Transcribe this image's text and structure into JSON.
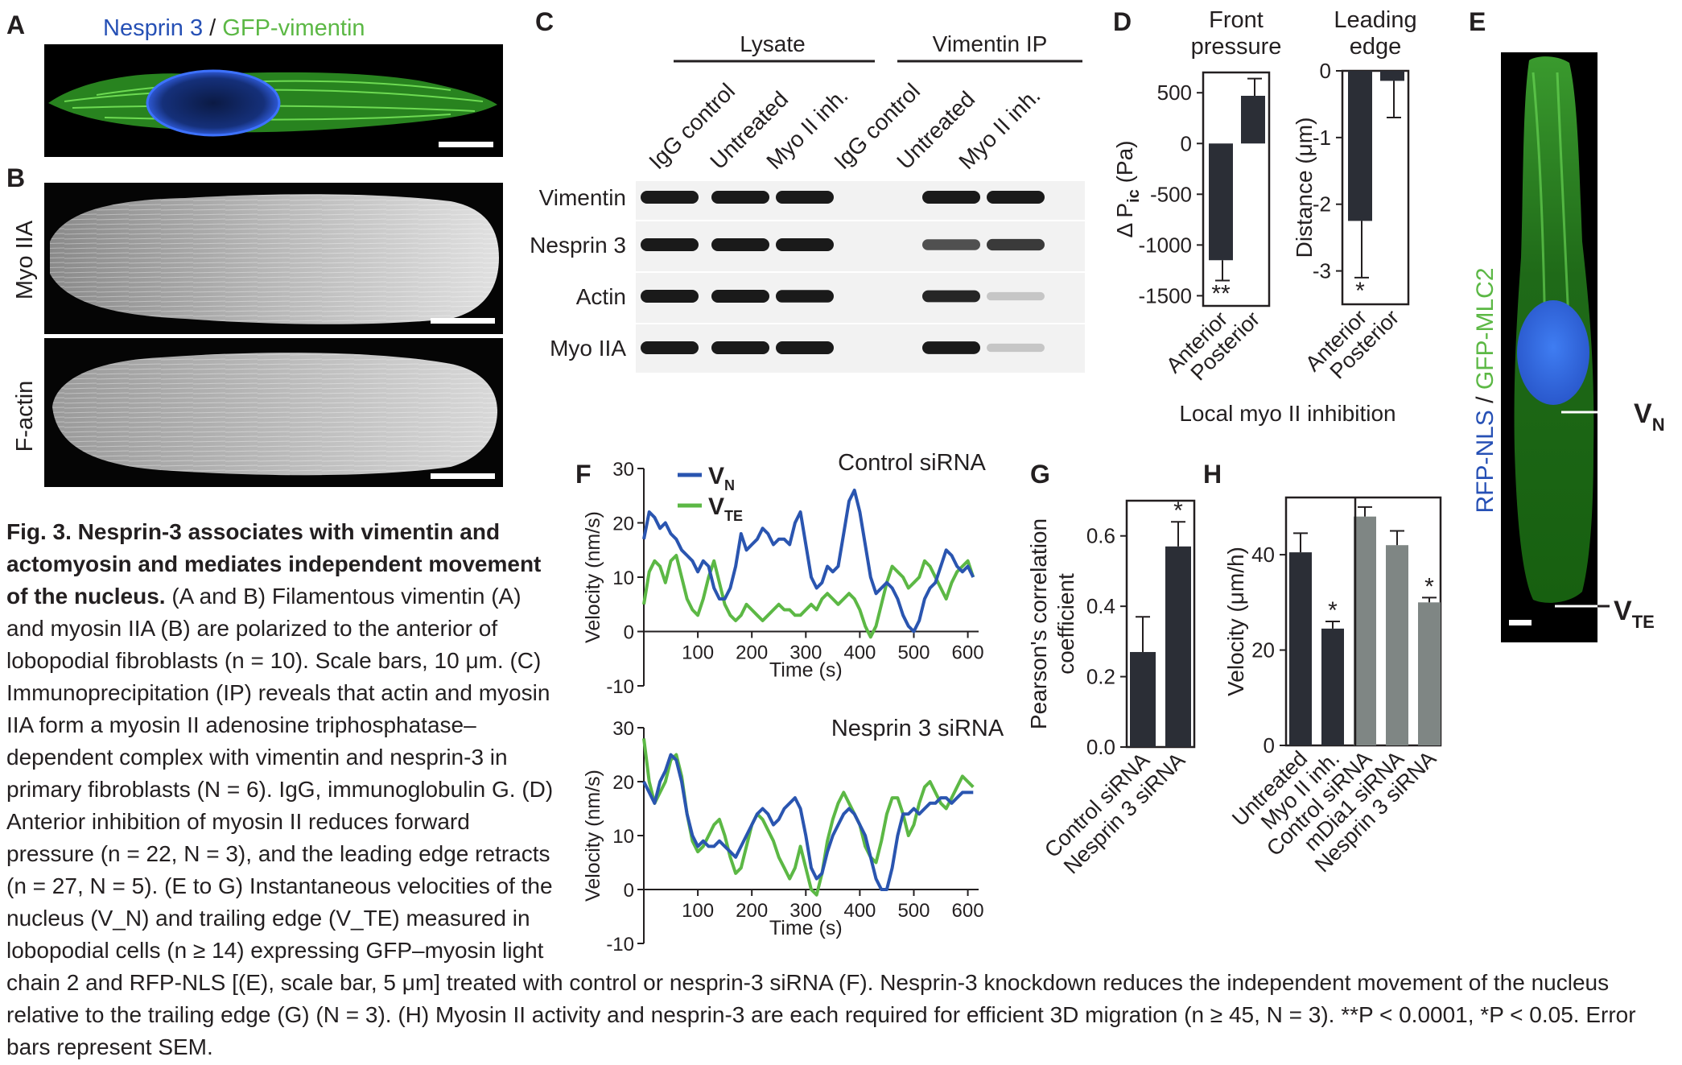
{
  "panels": {
    "A": {
      "letter": "A",
      "label_blue": "Nesprin 3",
      "label_sep": " / ",
      "label_green": "GFP-vimentin"
    },
    "B": {
      "letter": "B",
      "row1": "Myo IIA",
      "row2": "F-actin"
    },
    "C": {
      "letter": "C",
      "group1": "Lysate",
      "group2": "Vimentin IP",
      "lanes": [
        "IgG control",
        "Untreated",
        "Myo II inh.",
        "IgG control",
        "Untreated",
        "Myo II inh."
      ],
      "rows": [
        "Vimentin",
        "Nesprin 3",
        "Actin",
        "Myo IIA"
      ],
      "band_intensity": [
        [
          1.0,
          1.0,
          1.0,
          0.0,
          1.0,
          1.0
        ],
        [
          1.0,
          1.0,
          1.0,
          0.0,
          0.6,
          0.7
        ],
        [
          1.0,
          1.0,
          0.9,
          0.0,
          0.8,
          0.05
        ],
        [
          1.0,
          1.0,
          1.0,
          0.0,
          0.95,
          0.05
        ]
      ]
    },
    "D": {
      "letter": "D",
      "xlabel": "Local myo II inhibition"
    },
    "E": {
      "letter": "E",
      "label_blue": "RFP-NLS",
      "label_sep": " / ",
      "label_green": "GFP-MLC2",
      "vn_main": "V",
      "vn_sub": "N",
      "vte_main": "V",
      "vte_sub": "TE"
    },
    "F": {
      "letter": "F"
    },
    "G": {
      "letter": "G"
    },
    "H": {
      "letter": "H"
    }
  },
  "chart_data": [
    {
      "id": "D-front",
      "type": "bar",
      "title": "Front pressure",
      "title_lines": [
        "Front",
        "pressure"
      ],
      "ylabel": "Δ P_ic (Pa)",
      "ylabel_main": "Δ P",
      "ylabel_sub": "ic",
      "ylabel_unit": " (Pa)",
      "categories": [
        "Anterior",
        "Posterior"
      ],
      "values": [
        -1150,
        470
      ],
      "errors": [
        200,
        170
      ],
      "significance": [
        "**",
        ""
      ],
      "ylim": [
        -1600,
        700
      ],
      "yticks": [
        500,
        0,
        -500,
        -1000,
        -1500
      ],
      "ytick_labels": [
        "500",
        "0",
        "-500",
        "-1000",
        "-1500"
      ],
      "colors": [
        "#2b2e36",
        "#2b2e36"
      ]
    },
    {
      "id": "D-edge",
      "type": "bar",
      "title": "Leading edge",
      "title_lines": [
        "Leading",
        "edge"
      ],
      "ylabel": "Distance (μm)",
      "categories": [
        "Anterior",
        "Posterior"
      ],
      "values": [
        -2.25,
        -0.15
      ],
      "errors": [
        0.85,
        0.55
      ],
      "significance": [
        "*",
        ""
      ],
      "ylim": [
        -3.5,
        0
      ],
      "yticks": [
        0,
        -1,
        -2,
        -3
      ],
      "ytick_labels": [
        "0",
        "-1",
        "-2",
        "-3"
      ],
      "colors": [
        "#2b2e36",
        "#2b2e36"
      ]
    },
    {
      "id": "F-control",
      "type": "line",
      "title": "Control siRNA",
      "xlabel": "Time (s)",
      "ylabel": "Velocity (nm/s)",
      "xlim": [
        0,
        620
      ],
      "ylim": [
        -10,
        30
      ],
      "xticks": [
        100,
        200,
        300,
        400,
        500,
        600
      ],
      "yticks": [
        30,
        20,
        10,
        0,
        -10
      ],
      "legend": [
        {
          "main": "V",
          "sub": "N",
          "color": "#2a55b0"
        },
        {
          "main": "V",
          "sub": "TE",
          "color": "#5cb845"
        }
      ],
      "series": [
        {
          "name": "V_N",
          "color": "#2a55b0",
          "x": [
            0,
            10,
            20,
            30,
            40,
            50,
            60,
            70,
            80,
            90,
            100,
            110,
            120,
            130,
            140,
            150,
            160,
            170,
            180,
            190,
            200,
            210,
            220,
            230,
            240,
            250,
            260,
            270,
            280,
            290,
            300,
            310,
            320,
            330,
            340,
            350,
            360,
            370,
            380,
            390,
            400,
            410,
            420,
            430,
            440,
            450,
            460,
            470,
            480,
            490,
            500,
            510,
            520,
            530,
            540,
            550,
            560,
            570,
            580,
            590,
            600,
            610
          ],
          "y": [
            17,
            22,
            21,
            19,
            20,
            18,
            17,
            15,
            14,
            13,
            11,
            13,
            12,
            8,
            6,
            6,
            8,
            12,
            18,
            15,
            16,
            17,
            19,
            18,
            16,
            17,
            17,
            16,
            20,
            22,
            16,
            10,
            8,
            9,
            12,
            11,
            12,
            18,
            24,
            26,
            22,
            16,
            10,
            7,
            8,
            9,
            8,
            6,
            3,
            1,
            0,
            2,
            6,
            8,
            9,
            12,
            15,
            14,
            12,
            11,
            12,
            10
          ],
          "y_note": ""
        },
        {
          "name": "V_TE",
          "color": "#5cb845",
          "x": [
            0,
            10,
            20,
            30,
            40,
            50,
            60,
            70,
            80,
            90,
            100,
            110,
            120,
            130,
            140,
            150,
            160,
            170,
            180,
            190,
            200,
            210,
            220,
            230,
            240,
            250,
            260,
            270,
            280,
            290,
            300,
            310,
            320,
            330,
            340,
            350,
            360,
            370,
            380,
            390,
            400,
            410,
            420,
            430,
            440,
            450,
            460,
            470,
            480,
            490,
            500,
            510,
            520,
            530,
            540,
            550,
            560,
            570,
            580,
            590,
            600,
            610
          ],
          "y": [
            5,
            11,
            13,
            12,
            9,
            13,
            14,
            10,
            6,
            4,
            3,
            6,
            10,
            13,
            9,
            5,
            3,
            2,
            3,
            5,
            4,
            3,
            2,
            3,
            4,
            5,
            4,
            4,
            3,
            3,
            4,
            5,
            4,
            6,
            7,
            6,
            5,
            6,
            7,
            6,
            4,
            1,
            -1,
            1,
            5,
            9,
            12,
            11,
            10,
            8,
            9,
            10,
            13,
            12,
            10,
            8,
            6,
            9,
            11,
            12,
            13,
            10
          ]
        }
      ]
    },
    {
      "id": "F-nesprin",
      "type": "line",
      "title": "Nesprin 3 siRNA",
      "xlabel": "Time (s)",
      "ylabel": "Velocity (nm/s)",
      "xlim": [
        0,
        620
      ],
      "ylim": [
        -10,
        30
      ],
      "xticks": [
        100,
        200,
        300,
        400,
        500,
        600
      ],
      "yticks": [
        30,
        20,
        10,
        0,
        -10
      ],
      "series": [
        {
          "name": "V_N",
          "color": "#2a55b0",
          "x": [
            0,
            10,
            20,
            30,
            40,
            50,
            60,
            70,
            80,
            90,
            100,
            110,
            120,
            130,
            140,
            150,
            160,
            170,
            180,
            190,
            200,
            210,
            220,
            230,
            240,
            250,
            260,
            270,
            280,
            290,
            300,
            310,
            320,
            330,
            340,
            350,
            360,
            370,
            380,
            390,
            400,
            410,
            420,
            430,
            440,
            450,
            460,
            470,
            480,
            490,
            500,
            510,
            520,
            530,
            540,
            550,
            560,
            570,
            580,
            590,
            600,
            610
          ],
          "y": [
            20,
            18,
            16,
            20,
            22,
            25,
            24,
            20,
            14,
            10,
            8,
            9,
            8,
            8,
            9,
            8,
            7,
            6,
            8,
            10,
            12,
            14,
            15,
            14,
            12,
            13,
            15,
            16,
            17,
            15,
            10,
            4,
            2,
            3,
            7,
            10,
            12,
            14,
            15,
            14,
            12,
            10,
            6,
            2,
            0,
            0,
            4,
            10,
            14,
            14,
            15,
            14,
            15,
            16,
            16,
            17,
            17,
            16,
            17,
            18,
            18,
            18
          ]
        },
        {
          "name": "V_TE",
          "color": "#5cb845",
          "x": [
            0,
            10,
            20,
            30,
            40,
            50,
            60,
            70,
            80,
            90,
            100,
            110,
            120,
            130,
            140,
            150,
            160,
            170,
            180,
            190,
            200,
            210,
            220,
            230,
            240,
            250,
            260,
            270,
            280,
            290,
            300,
            310,
            320,
            330,
            340,
            350,
            360,
            370,
            380,
            390,
            400,
            410,
            420,
            430,
            440,
            450,
            460,
            470,
            480,
            490,
            500,
            510,
            520,
            530,
            540,
            550,
            560,
            570,
            580,
            590,
            600,
            610
          ],
          "y": [
            28,
            20,
            16,
            18,
            20,
            24,
            25,
            21,
            14,
            9,
            7,
            8,
            10,
            12,
            13,
            10,
            6,
            3,
            4,
            8,
            12,
            14,
            13,
            11,
            9,
            6,
            4,
            2,
            4,
            8,
            4,
            0,
            -1,
            3,
            9,
            13,
            16,
            18,
            16,
            14,
            12,
            8,
            6,
            5,
            9,
            14,
            17,
            17,
            14,
            10,
            12,
            16,
            19,
            20,
            18,
            16,
            15,
            17,
            19,
            21,
            20,
            19
          ]
        }
      ]
    },
    {
      "id": "G",
      "type": "bar",
      "ylabel": "Pearson's correlation coefficient",
      "ylabel_lines": [
        "Pearson's correlation",
        "coefficient"
      ],
      "categories": [
        "Control siRNA",
        "Nesprin 3 siRNA"
      ],
      "values": [
        0.27,
        0.57
      ],
      "errors": [
        0.1,
        0.07
      ],
      "significance": [
        "",
        "*"
      ],
      "ylim": [
        0,
        0.7
      ],
      "yticks": [
        0.6,
        0.4,
        0.2,
        0.0
      ],
      "ytick_labels": [
        "0.6",
        "0.4",
        "0.2",
        "0.0"
      ],
      "colors": [
        "#2b2e36",
        "#2b2e36"
      ]
    },
    {
      "id": "H",
      "type": "bar",
      "ylabel": "Velocity (μm/h)",
      "categories": [
        "Untreated",
        "Myo II inh.",
        "Control siRNA",
        "mDia1 siRNA",
        "Nesprin 3 siRNA"
      ],
      "values": [
        40.5,
        24.5,
        48.0,
        42.0,
        30.0
      ],
      "errors": [
        4.0,
        1.5,
        2.0,
        3.0,
        1.0
      ],
      "significance": [
        "",
        "*",
        "",
        "",
        "*"
      ],
      "ylim": [
        0,
        52
      ],
      "yticks": [
        40,
        20,
        0
      ],
      "ytick_labels": [
        "40",
        "20",
        "0"
      ],
      "colors": [
        "#2b2e36",
        "#2b2e36",
        "#7f8684",
        "#7f8684",
        "#7f8684"
      ]
    }
  ],
  "caption": {
    "title": "Fig. 3. Nesprin-3 associates with vimentin and actomyosin and mediates independent movement of the nucleus.",
    "left_body": " (A and B) Filamentous vimentin (A) and myosin IIA (B) are polarized to the anterior of lobopodial fibroblasts (n = 10). Scale bars, 10 μm. (C) Immunoprecipitation (IP) reveals that actin and myosin IIA form a myosin II adenosine triphosphatase–dependent complex with vimentin and nesprin-3 in primary fibroblasts (N = 6). IgG, immunoglobulin G. (D) Anterior inhibition of myosin II reduces forward pressure (n = 22, N = 3), and the leading edge retracts (n = 27, N = 5). (E to G) Instantaneous velocities of the nucleus (V_N) and trailing edge (V_TE) measured in lobopodial cells (n ≥ 14) expressing GFP–myosin light",
    "bottom_body": "chain 2 and RFP-NLS [(E), scale bar, 5 μm] treated with control or nesprin-3 siRNA (F). Nesprin-3 knockdown reduces the independent movement of the nucleus relative to the trailing edge (G) (N = 3). (H) Myosin II activity and nesprin-3 are each required for efficient 3D migration (n ≥ 45, N = 3). **P < 0.0001, *P < 0.05. Error bars represent SEM."
  }
}
